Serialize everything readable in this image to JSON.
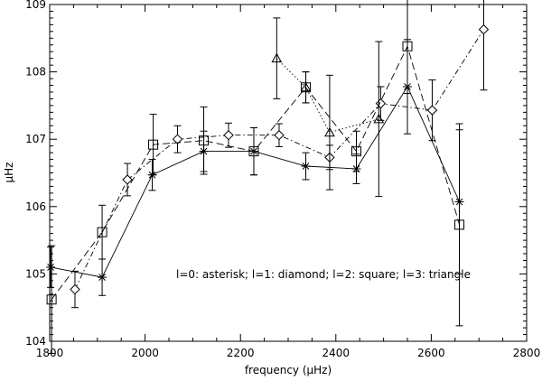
{
  "chart_data": {
    "type": "scatter",
    "title": "",
    "xlabel": "frequency (μHz)",
    "ylabel": "μHz",
    "xlim": [
      1800,
      2800
    ],
    "ylim": [
      104,
      109
    ],
    "xticks": [
      "1800",
      "2000",
      "2200",
      "2400",
      "2600",
      "2800"
    ],
    "yticks": [
      "104",
      "105",
      "106",
      "107",
      "108",
      "109"
    ],
    "annotation": "l=0: asterisk; l=1: diamond; l=2: square; l=3: triangle",
    "grid": false,
    "color": "#000000",
    "series": [
      {
        "marker": "asterisk",
        "line": "solid",
        "x": [
          1802,
          1910,
          2015,
          2123,
          2228,
          2337,
          2443,
          2550,
          2659
        ],
        "y": [
          105.1,
          104.95,
          106.47,
          106.82,
          106.82,
          106.6,
          106.56,
          107.78,
          106.07
        ],
        "err": [
          0.3,
          0.27,
          0.23,
          0.3,
          0.35,
          0.2,
          0.22,
          0.7,
          1.07
        ]
      },
      {
        "marker": "diamond",
        "line": "dashdot",
        "x": [
          1853,
          1963,
          2068,
          2175,
          2281,
          2387,
          2494,
          2602,
          2710
        ],
        "y": [
          104.77,
          106.4,
          107.0,
          107.06,
          107.06,
          106.73,
          107.53,
          107.43,
          108.63
        ],
        "err": [
          0.27,
          0.24,
          0.2,
          0.18,
          0.17,
          0.18,
          0.25,
          0.45,
          0.9
        ]
      },
      {
        "marker": "square",
        "line": "dashed",
        "x": [
          1804,
          1910,
          2017,
          2123,
          2228,
          2337,
          2443,
          2550,
          2659
        ],
        "y": [
          104.62,
          105.62,
          106.92,
          106.98,
          106.82,
          107.77,
          106.82,
          108.38,
          105.73
        ],
        "err": [
          0.8,
          0.4,
          0.45,
          0.5,
          0.35,
          0.23,
          0.3,
          0.7,
          1.5
        ]
      },
      {
        "marker": "triangle",
        "line": "dotted",
        "x": [
          2276,
          2337,
          2387,
          2490
        ],
        "y": [
          108.2,
          107.77,
          107.1,
          107.3
        ],
        "err": [
          0.6,
          0.23,
          0.85,
          1.15
        ]
      }
    ]
  }
}
